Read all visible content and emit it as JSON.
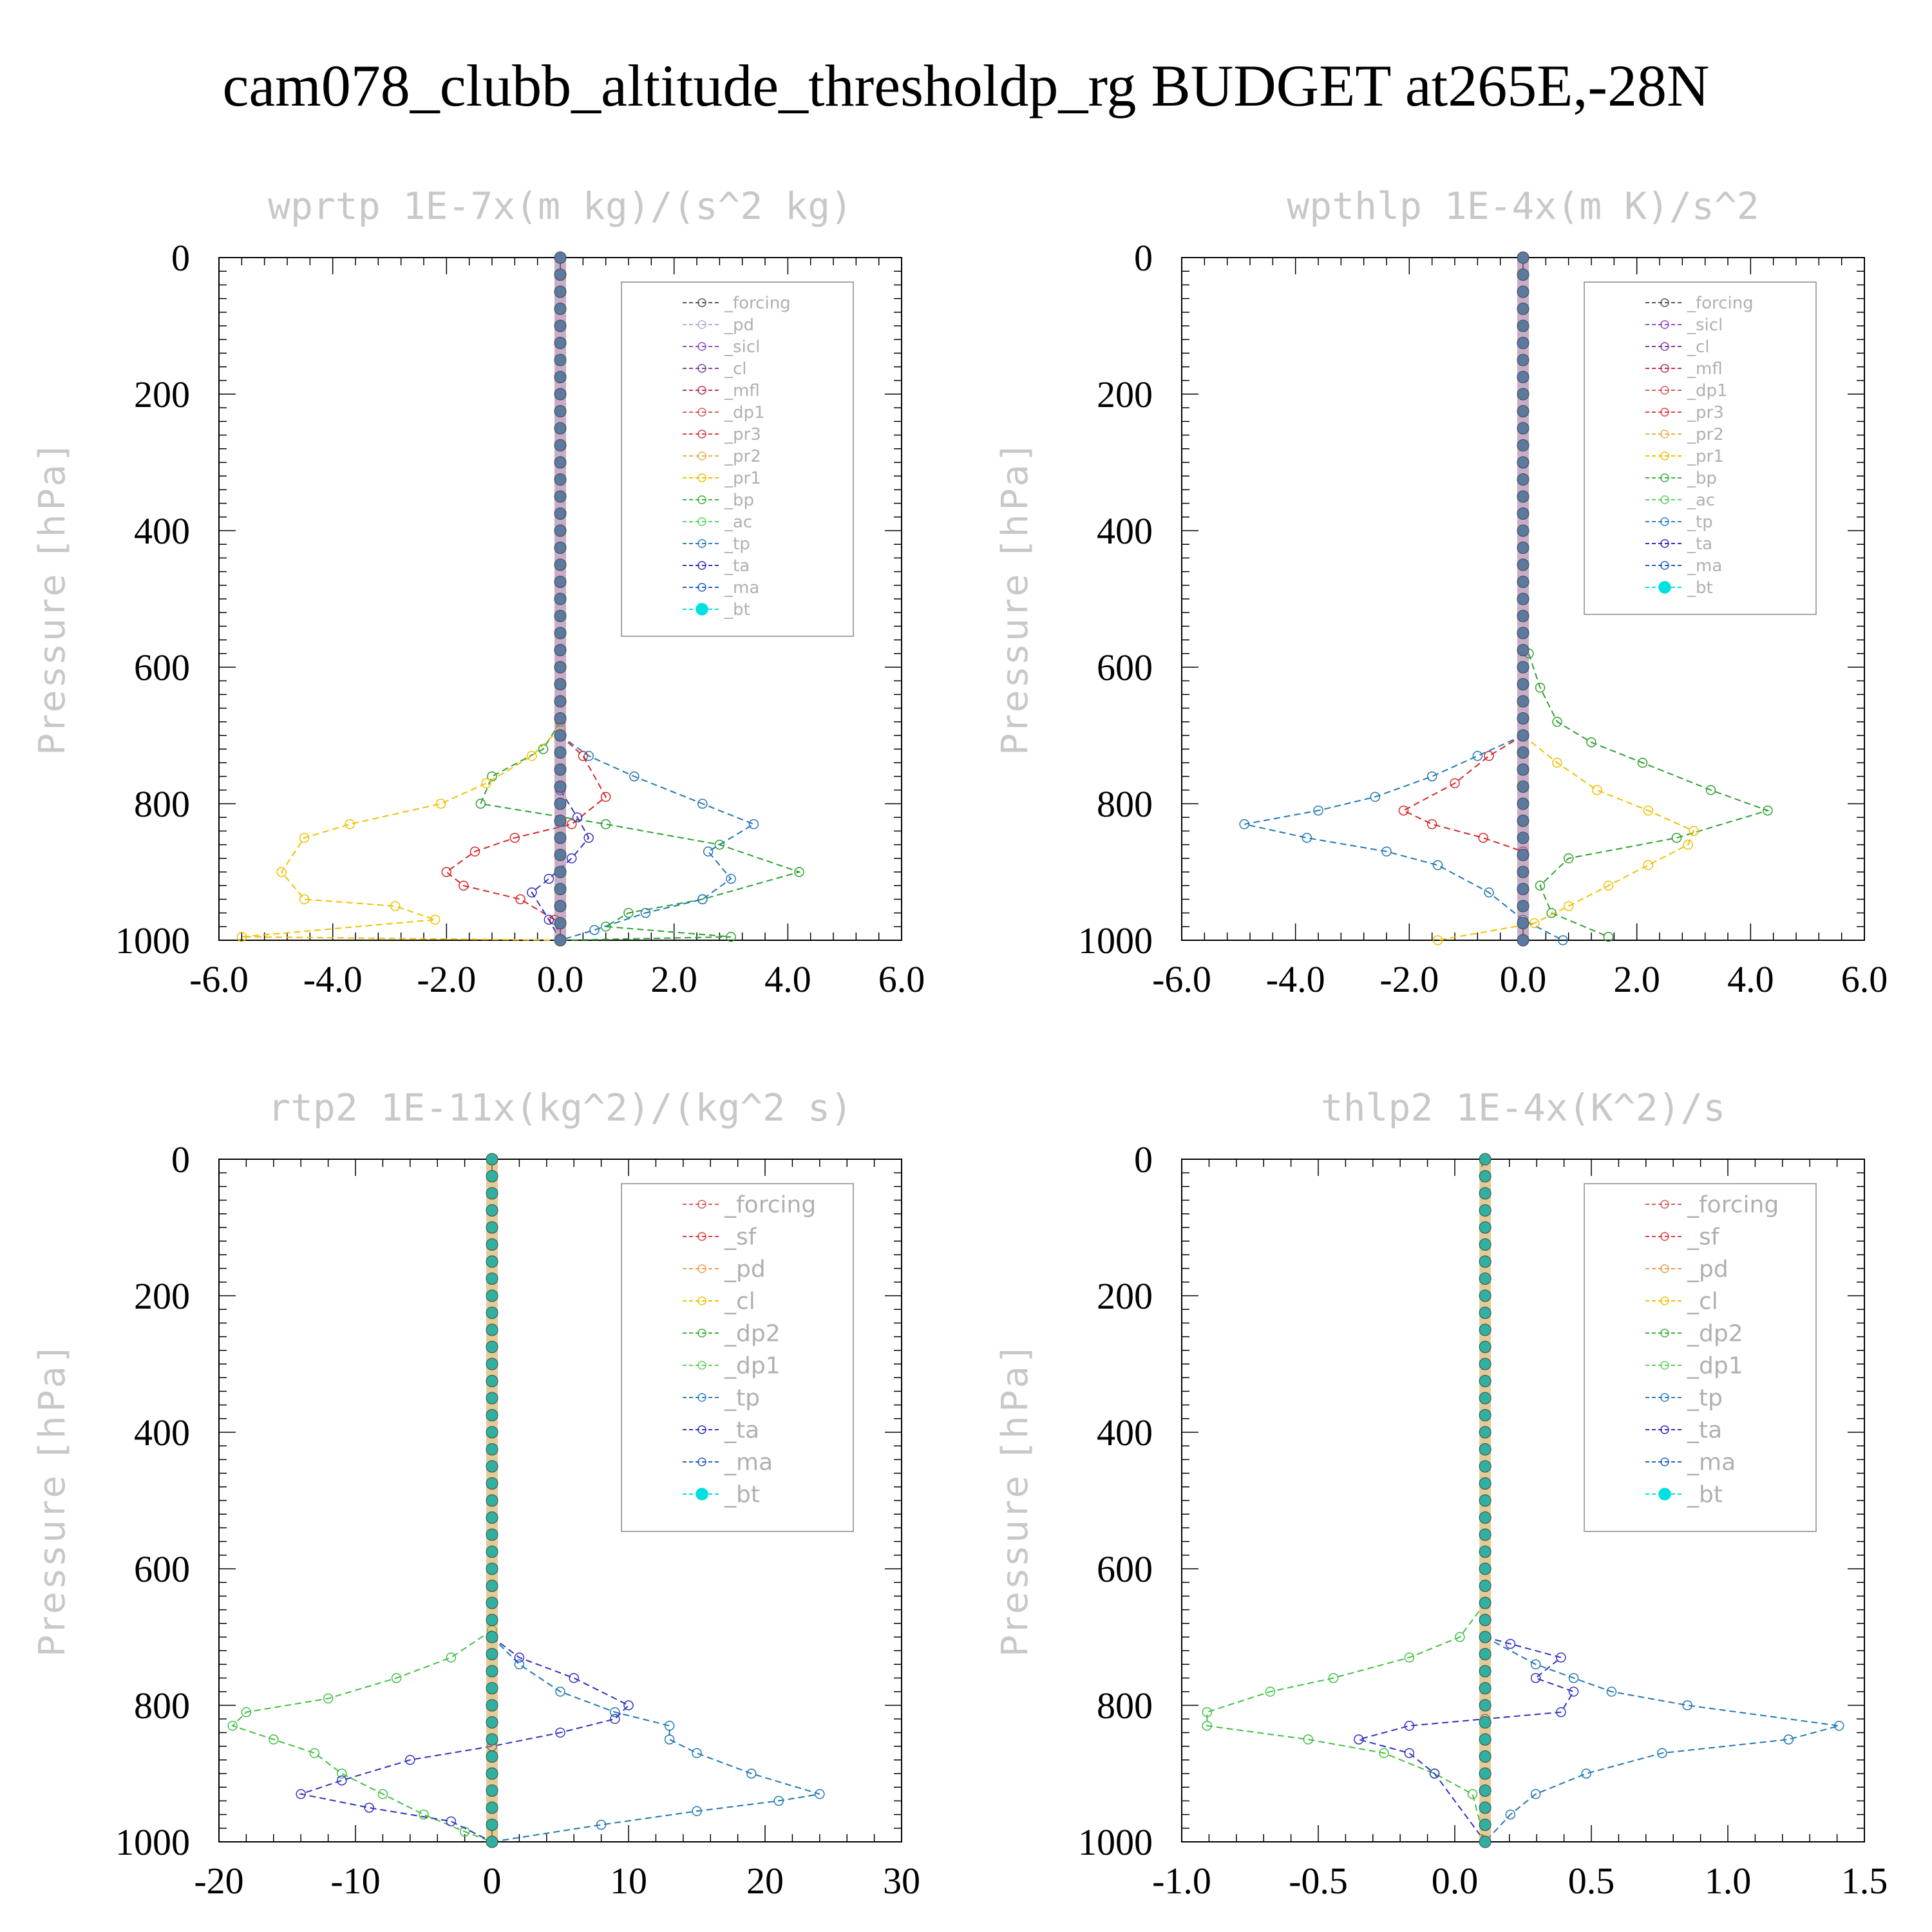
{
  "page_title": "cam078_clubb_altitude_thresholdp_rg  BUDGET at265E,-28N",
  "chart_data": [
    {
      "type": "line",
      "title": "wprtp  1E-7x(m kg)/(s^2 kg)",
      "ylabel": "Pressure [hPa]",
      "xlim": [
        -6,
        6
      ],
      "ylim": [
        1000,
        0
      ],
      "xticks": [
        "-6.0",
        "-4.0",
        "-2.0",
        "0.0",
        "2.0",
        "4.0",
        "6.0"
      ],
      "yticks": [
        "0",
        "200",
        "400",
        "600",
        "800",
        "1000"
      ],
      "legend": [
        "_forcing",
        "_pd",
        "_sicl",
        "_cl",
        "_mfl",
        "_dp1",
        "_pr3",
        "_pr2",
        "_pr1",
        "_bp",
        "_ac",
        "_tp",
        "_ta",
        "_ma",
        "_bt"
      ],
      "legend_position": "top-right",
      "series": [
        {
          "name": "_bp",
          "color": "#2ca02c",
          "x": [
            0,
            -0.3,
            -1.2,
            -1.4,
            0.8,
            2.8,
            4.2,
            2.5,
            1.2,
            0.8,
            3.0,
            0
          ],
          "y": [
            680,
            720,
            760,
            800,
            830,
            860,
            900,
            940,
            960,
            980,
            995,
            1000
          ]
        },
        {
          "name": "_tp",
          "color": "#1f77b4",
          "x": [
            0,
            0.5,
            1.3,
            2.5,
            3.4,
            2.6,
            3.0,
            2.5,
            1.5,
            0.6,
            0
          ],
          "y": [
            700,
            730,
            760,
            800,
            830,
            870,
            910,
            940,
            960,
            985,
            1000
          ]
        },
        {
          "name": "_pr1",
          "color": "#f0c000",
          "x": [
            0,
            -0.5,
            -1.3,
            -2.1,
            -3.7,
            -4.5,
            -4.9,
            -4.5,
            -2.9,
            -2.2,
            -5.6,
            0
          ],
          "y": [
            690,
            730,
            770,
            800,
            830,
            850,
            900,
            940,
            950,
            970,
            995,
            1000
          ]
        },
        {
          "name": "_pr3",
          "color": "#d62728",
          "x": [
            0,
            0.4,
            0.8,
            0.2,
            -0.8,
            -1.5,
            -2.0,
            -1.7,
            -0.7,
            -0.1,
            0
          ],
          "y": [
            700,
            730,
            790,
            830,
            850,
            870,
            900,
            920,
            940,
            970,
            1000
          ]
        },
        {
          "name": "_ta",
          "color": "#3030c0",
          "x": [
            0,
            0.3,
            0.5,
            0.2,
            -0.2,
            -0.5,
            -0.2,
            0
          ],
          "y": [
            780,
            820,
            850,
            880,
            910,
            930,
            970,
            1000
          ]
        }
      ]
    },
    {
      "type": "line",
      "title": "wpthlp  1E-4x(m K)/s^2",
      "ylabel": "Pressure [hPa]",
      "xlim": [
        -6,
        6
      ],
      "ylim": [
        1000,
        0
      ],
      "xticks": [
        "-6.0",
        "-4.0",
        "-2.0",
        "0.0",
        "2.0",
        "4.0",
        "6.0"
      ],
      "yticks": [
        "0",
        "200",
        "400",
        "600",
        "800",
        "1000"
      ],
      "legend": [
        "_forcing",
        "_sicl",
        "_cl",
        "_mfl",
        "_dp1",
        "_pr3",
        "_pr2",
        "_pr1",
        "_bp",
        "_ac",
        "_tp",
        "_ta",
        "_ma",
        "_bt"
      ],
      "legend_position": "top-right",
      "series": [
        {
          "name": "_bp",
          "color": "#2ca02c",
          "x": [
            0.1,
            0.3,
            0.6,
            1.2,
            2.1,
            3.3,
            4.3,
            2.7,
            0.8,
            0.3,
            0.5,
            1.5
          ],
          "y": [
            580,
            630,
            680,
            710,
            740,
            780,
            810,
            850,
            880,
            920,
            960,
            995
          ]
        },
        {
          "name": "_tp",
          "color": "#1f77b4",
          "x": [
            0,
            -0.8,
            -1.6,
            -2.6,
            -3.6,
            -4.9,
            -3.8,
            -2.4,
            -1.5,
            -0.6,
            0,
            0.7
          ],
          "y": [
            700,
            730,
            760,
            790,
            810,
            830,
            850,
            870,
            890,
            930,
            970,
            1000
          ]
        },
        {
          "name": "_pr1",
          "color": "#f0c000",
          "x": [
            0,
            0.6,
            1.3,
            2.2,
            3.0,
            2.9,
            2.2,
            1.5,
            0.8,
            0.2,
            -1.5
          ],
          "y": [
            700,
            740,
            780,
            810,
            840,
            860,
            890,
            920,
            950,
            975,
            1000
          ]
        },
        {
          "name": "_pr3",
          "color": "#d62728",
          "x": [
            0,
            -0.6,
            -1.2,
            -2.1,
            -1.6,
            -0.7,
            0
          ],
          "y": [
            700,
            730,
            770,
            810,
            830,
            850,
            870
          ]
        }
      ]
    },
    {
      "type": "line",
      "title": "rtp2  1E-11x(kg^2)/(kg^2 s)",
      "ylabel": "Pressure [hPa]",
      "xlim": [
        -20,
        30
      ],
      "ylim": [
        1000,
        0
      ],
      "xticks": [
        "-20",
        "-10",
        "0",
        "10",
        "20",
        "30"
      ],
      "yticks": [
        "0",
        "200",
        "400",
        "600",
        "800",
        "1000"
      ],
      "legend": [
        "_forcing",
        "_sf",
        "_pd",
        "_cl",
        "_dp2",
        "_dp1",
        "_tp",
        "_ta",
        "_ma",
        "_bt"
      ],
      "legend_position": "top-right",
      "series": [
        {
          "name": "_dp1",
          "color": "#40c040",
          "x": [
            0,
            -3,
            -7,
            -12,
            -18,
            -19,
            -16,
            -13,
            -11,
            -8,
            -5,
            -2,
            0
          ],
          "y": [
            690,
            730,
            760,
            790,
            810,
            830,
            850,
            870,
            900,
            930,
            960,
            985,
            1000
          ]
        },
        {
          "name": "_tp",
          "color": "#1f77b4",
          "x": [
            0,
            2,
            5,
            9,
            13,
            13,
            15,
            19,
            24,
            21,
            15,
            8,
            0
          ],
          "y": [
            700,
            740,
            780,
            810,
            830,
            850,
            870,
            900,
            930,
            940,
            955,
            975,
            1000
          ]
        },
        {
          "name": "_ta",
          "color": "#3030c0",
          "x": [
            0,
            2,
            6,
            10,
            9,
            5,
            0,
            -6,
            -11,
            -14,
            -9,
            -3,
            0
          ],
          "y": [
            700,
            730,
            760,
            800,
            820,
            840,
            860,
            880,
            910,
            930,
            950,
            970,
            1000
          ]
        }
      ]
    },
    {
      "type": "line",
      "title": "thlp2  1E-4x(K^2)/s",
      "ylabel": "Pressure [hPa]",
      "xlim": [
        -1.2,
        1.5
      ],
      "ylim": [
        1000,
        0
      ],
      "xticks": [
        "-1.0",
        "-0.5",
        "0.0",
        "0.5",
        "1.0",
        "1.5"
      ],
      "yticks": [
        "0",
        "200",
        "400",
        "600",
        "800",
        "1000"
      ],
      "legend": [
        "_forcing",
        "_sf",
        "_pd",
        "_cl",
        "_dp2",
        "_dp1",
        "_tp",
        "_ta",
        "_ma",
        "_bt"
      ],
      "legend_position": "top-right",
      "series": [
        {
          "name": "_dp1",
          "color": "#40c040",
          "x": [
            0,
            -0.1,
            -0.3,
            -0.6,
            -0.85,
            -1.1,
            -1.1,
            -0.7,
            -0.4,
            -0.2,
            -0.05,
            0
          ],
          "y": [
            650,
            700,
            730,
            760,
            780,
            810,
            830,
            850,
            870,
            900,
            930,
            1000
          ]
        },
        {
          "name": "_tp",
          "color": "#1f77b4",
          "x": [
            0,
            0.2,
            0.35,
            0.5,
            0.8,
            1.4,
            1.2,
            0.7,
            0.4,
            0.2,
            0.1,
            0
          ],
          "y": [
            700,
            740,
            760,
            780,
            800,
            830,
            850,
            870,
            900,
            930,
            960,
            1000
          ]
        },
        {
          "name": "_ta",
          "color": "#3030c0",
          "x": [
            0,
            0.1,
            0.3,
            0.2,
            0.35,
            0.3,
            0,
            -0.3,
            -0.5,
            -0.3,
            -0.2,
            0
          ],
          "y": [
            700,
            710,
            730,
            760,
            780,
            810,
            820,
            830,
            850,
            870,
            900,
            1000
          ]
        }
      ]
    }
  ]
}
